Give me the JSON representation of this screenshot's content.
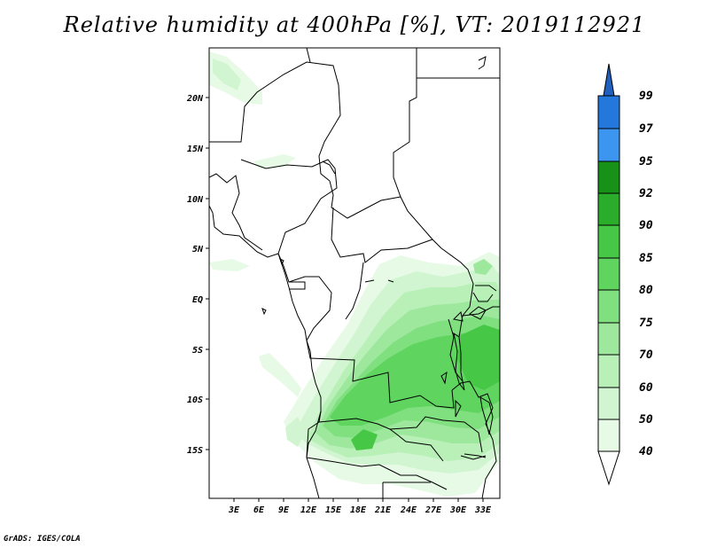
{
  "title": "Relative humidity at 400hPa [%], VT: 2019112921",
  "credit": "GrADS: IGES/COLA",
  "map": {
    "lat_labels": [
      "20N",
      "15N",
      "10N",
      "5N",
      "EQ",
      "5S",
      "10S",
      "15S"
    ],
    "lon_labels": [
      "3E",
      "6E",
      "9E",
      "12E",
      "15E",
      "18E",
      "21E",
      "24E",
      "27E",
      "30E",
      "33E"
    ]
  },
  "colorbar": {
    "levels": [
      "99",
      "97",
      "95",
      "92",
      "90",
      "85",
      "80",
      "75",
      "70",
      "60",
      "50",
      "40"
    ],
    "colors": {
      "c40_50": "#e6fae6",
      "c50_60": "#d0f5d0",
      "c60_70": "#b8f0b8",
      "c70_75": "#9ee89e",
      "c75_80": "#80e080",
      "c80_85": "#5fd45f",
      "c85_90": "#46c846",
      "c90_92": "#2aad2a",
      "c92_95": "#179117",
      "c95_97": "#3c96f0",
      "c97_99": "#2478dc",
      "c99": "#1f5fbd"
    }
  }
}
